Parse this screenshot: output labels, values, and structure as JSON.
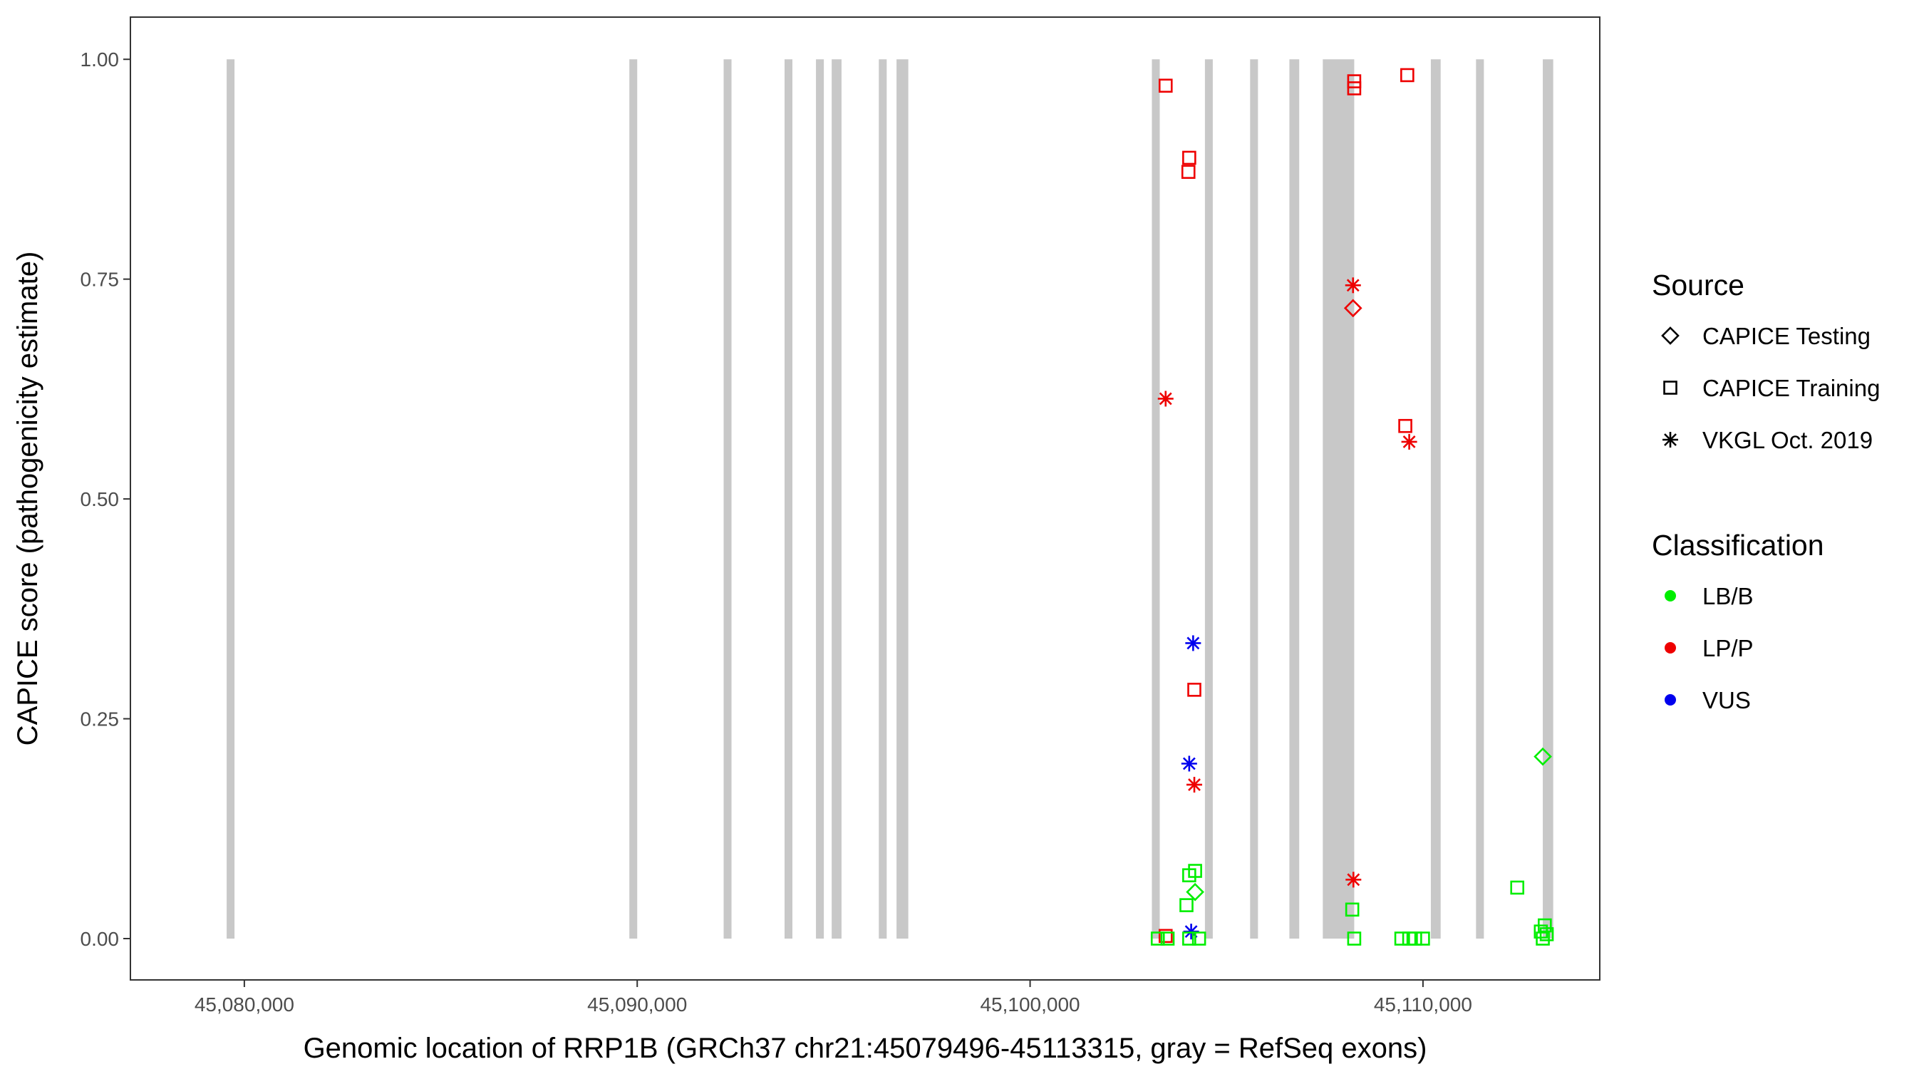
{
  "chart_data": {
    "type": "scatter",
    "title": "",
    "xlabel": "Genomic location of RRP1B (GRCh37 chr21:45079496-45113315, gray = RefSeq exons)",
    "ylabel": "CAPICE score (pathogenicity estimate)",
    "xlim": [
      45077100,
      45114500
    ],
    "ylim": [
      -0.047,
      1.048
    ],
    "x_ticks": [
      {
        "value": 45080000,
        "label": "45,080,000"
      },
      {
        "value": 45090000,
        "label": "45,090,000"
      },
      {
        "value": 45100000,
        "label": "45,100,000"
      },
      {
        "value": 45110000,
        "label": "45,110,000"
      }
    ],
    "y_ticks": [
      {
        "value": 0.0,
        "label": "0.00"
      },
      {
        "value": 0.25,
        "label": "0.25"
      },
      {
        "value": 0.5,
        "label": "0.50"
      },
      {
        "value": 0.75,
        "label": "0.75"
      },
      {
        "value": 1.0,
        "label": "1.00"
      }
    ],
    "grid": false,
    "exons": [
      [
        45079550,
        45079750
      ],
      [
        45089800,
        45090000
      ],
      [
        45092200,
        45092400
      ],
      [
        45093750,
        45093950
      ],
      [
        45094550,
        45094750
      ],
      [
        45094950,
        45095200
      ],
      [
        45096150,
        45096350
      ],
      [
        45096600,
        45096900
      ],
      [
        45103100,
        45103300
      ],
      [
        45104450,
        45104650
      ],
      [
        45105600,
        45105800
      ],
      [
        45106600,
        45106850
      ],
      [
        45107450,
        45108250
      ],
      [
        45110200,
        45110450
      ],
      [
        45111350,
        45111550
      ],
      [
        45113050,
        45113315
      ]
    ],
    "source_legend": {
      "title": "Source",
      "entries": [
        {
          "name": "CAPICE Testing",
          "shape": "diamond"
        },
        {
          "name": "CAPICE Training",
          "shape": "square"
        },
        {
          "name": "VKGL Oct. 2019",
          "shape": "asterisk"
        }
      ]
    },
    "classification_legend": {
      "title": "Classification",
      "entries": [
        {
          "name": "LB/B",
          "color": "#00ee00"
        },
        {
          "name": "LP/P",
          "color": "#ee0000"
        },
        {
          "name": "VUS",
          "color": "#0000ee"
        }
      ]
    },
    "points": [
      {
        "x": 45103450,
        "y": 0.97,
        "source": "CAPICE Training",
        "class": "LP/P"
      },
      {
        "x": 45104050,
        "y": 0.888,
        "source": "CAPICE Training",
        "class": "LP/P"
      },
      {
        "x": 45104030,
        "y": 0.872,
        "source": "CAPICE Training",
        "class": "LP/P"
      },
      {
        "x": 45103450,
        "y": 0.614,
        "source": "VKGL Oct. 2019",
        "class": "LP/P"
      },
      {
        "x": 45104180,
        "y": 0.283,
        "source": "CAPICE Training",
        "class": "LP/P"
      },
      {
        "x": 45104180,
        "y": 0.175,
        "source": "VKGL Oct. 2019",
        "class": "LP/P"
      },
      {
        "x": 45103450,
        "y": 0.003,
        "source": "CAPICE Training",
        "class": "LP/P"
      },
      {
        "x": 45108250,
        "y": 0.975,
        "source": "CAPICE Training",
        "class": "LP/P"
      },
      {
        "x": 45108250,
        "y": 0.967,
        "source": "CAPICE Training",
        "class": "LP/P"
      },
      {
        "x": 45108220,
        "y": 0.743,
        "source": "VKGL Oct. 2019",
        "class": "LP/P"
      },
      {
        "x": 45108220,
        "y": 0.717,
        "source": "CAPICE Testing",
        "class": "LP/P"
      },
      {
        "x": 45108230,
        "y": 0.067,
        "source": "VKGL Oct. 2019",
        "class": "LP/P"
      },
      {
        "x": 45109600,
        "y": 0.982,
        "source": "CAPICE Training",
        "class": "LP/P"
      },
      {
        "x": 45109550,
        "y": 0.583,
        "source": "CAPICE Training",
        "class": "LP/P"
      },
      {
        "x": 45109650,
        "y": 0.565,
        "source": "VKGL Oct. 2019",
        "class": "LP/P"
      },
      {
        "x": 45104150,
        "y": 0.336,
        "source": "VKGL Oct. 2019",
        "class": "VUS"
      },
      {
        "x": 45104050,
        "y": 0.199,
        "source": "VKGL Oct. 2019",
        "class": "VUS"
      },
      {
        "x": 45104100,
        "y": 0.008,
        "source": "VKGL Oct. 2019",
        "class": "VUS"
      },
      {
        "x": 45104200,
        "y": 0.077,
        "source": "CAPICE Training",
        "class": "LB/B"
      },
      {
        "x": 45104050,
        "y": 0.072,
        "source": "CAPICE Training",
        "class": "LB/B"
      },
      {
        "x": 45104200,
        "y": 0.053,
        "source": "CAPICE Testing",
        "class": "LB/B"
      },
      {
        "x": 45103980,
        "y": 0.038,
        "source": "CAPICE Training",
        "class": "LB/B"
      },
      {
        "x": 45103250,
        "y": 0.0,
        "source": "CAPICE Training",
        "class": "LB/B"
      },
      {
        "x": 45103500,
        "y": 0.0,
        "source": "CAPICE Training",
        "class": "LB/B"
      },
      {
        "x": 45104050,
        "y": 0.0,
        "source": "CAPICE Training",
        "class": "LB/B"
      },
      {
        "x": 45104300,
        "y": 0.0,
        "source": "CAPICE Training",
        "class": "LB/B"
      },
      {
        "x": 45108200,
        "y": 0.033,
        "source": "CAPICE Training",
        "class": "LB/B"
      },
      {
        "x": 45108250,
        "y": 0.0,
        "source": "CAPICE Training",
        "class": "LB/B"
      },
      {
        "x": 45109450,
        "y": 0.0,
        "source": "CAPICE Training",
        "class": "LB/B"
      },
      {
        "x": 45109650,
        "y": 0.0,
        "source": "CAPICE Training",
        "class": "LB/B"
      },
      {
        "x": 45109800,
        "y": 0.0,
        "source": "CAPICE Training",
        "class": "LB/B"
      },
      {
        "x": 45110000,
        "y": 0.0,
        "source": "CAPICE Training",
        "class": "LB/B"
      },
      {
        "x": 45112400,
        "y": 0.058,
        "source": "CAPICE Training",
        "class": "LB/B"
      },
      {
        "x": 45113050,
        "y": 0.207,
        "source": "CAPICE Testing",
        "class": "LB/B"
      },
      {
        "x": 45113100,
        "y": 0.015,
        "source": "CAPICE Training",
        "class": "LB/B"
      },
      {
        "x": 45113000,
        "y": 0.008,
        "source": "CAPICE Training",
        "class": "LB/B"
      },
      {
        "x": 45113150,
        "y": 0.005,
        "source": "CAPICE Training",
        "class": "LB/B"
      },
      {
        "x": 45113050,
        "y": 0.0,
        "source": "CAPICE Training",
        "class": "LB/B"
      }
    ]
  }
}
